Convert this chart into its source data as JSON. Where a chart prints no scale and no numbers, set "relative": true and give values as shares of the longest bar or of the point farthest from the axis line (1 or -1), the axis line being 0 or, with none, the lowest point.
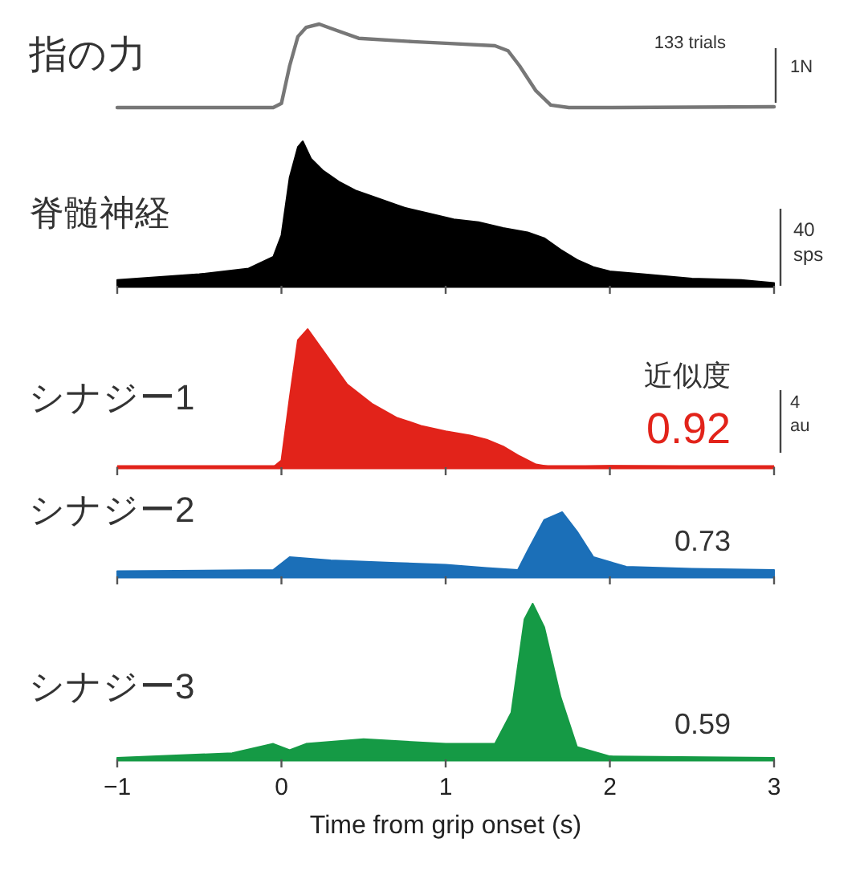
{
  "chart_data": [
    {
      "type": "line",
      "title": "指の力",
      "relative": true,
      "xlim": [
        -1,
        3
      ],
      "tick_labels": false,
      "x": [
        -1,
        -0.05,
        0,
        0.05,
        0.1,
        0.15,
        0.23,
        0.3,
        0.47,
        0.8,
        1.0,
        1.3,
        1.38,
        1.45,
        1.55,
        1.64,
        1.75,
        2.0,
        3
      ],
      "series": [
        {
          "color": "#777777",
          "values": [
            0,
            0,
            0.05,
            0.5,
            0.85,
            0.96,
            1.0,
            0.95,
            0.83,
            0.79,
            0.77,
            0.74,
            0.68,
            0.5,
            0.2,
            0.03,
            0,
            0,
            0.01
          ]
        }
      ],
      "annotations": [
        "133 trials",
        "1N"
      ]
    },
    {
      "type": "area",
      "title": "脊髄神経",
      "relative": true,
      "xlim": [
        -1,
        3
      ],
      "xticks": [
        -1,
        0,
        1,
        2,
        3
      ],
      "tick_labels": false,
      "x": [
        -1,
        -0.5,
        -0.2,
        -0.05,
        0,
        0.05,
        0.1,
        0.13,
        0.18,
        0.25,
        0.35,
        0.45,
        0.6,
        0.75,
        0.9,
        1.05,
        1.2,
        1.35,
        1.5,
        1.6,
        1.7,
        1.8,
        1.9,
        2.0,
        2.2,
        2.5,
        2.8,
        3
      ],
      "series": [
        {
          "color": "#000000",
          "values": [
            0.04,
            0.08,
            0.12,
            0.2,
            0.35,
            0.75,
            0.96,
            1.0,
            0.88,
            0.8,
            0.72,
            0.66,
            0.6,
            0.54,
            0.5,
            0.46,
            0.44,
            0.4,
            0.37,
            0.33,
            0.25,
            0.18,
            0.13,
            0.1,
            0.08,
            0.05,
            0.04,
            0.02
          ]
        }
      ],
      "annotations": [
        "40 sps"
      ]
    },
    {
      "type": "area",
      "title": "シナジー1",
      "relative": true,
      "xlim": [
        -1,
        3
      ],
      "xticks": [
        -1,
        0,
        1,
        2,
        3
      ],
      "tick_labels": false,
      "x": [
        -1,
        -0.05,
        0,
        0.05,
        0.1,
        0.16,
        0.25,
        0.4,
        0.55,
        0.7,
        0.85,
        1.0,
        1.15,
        1.25,
        1.35,
        1.45,
        1.55,
        1.65,
        2.0,
        3
      ],
      "series": [
        {
          "color": "#e2231a",
          "values": [
            0,
            0,
            0.05,
            0.5,
            0.92,
            1.0,
            0.85,
            0.6,
            0.46,
            0.36,
            0.3,
            0.26,
            0.23,
            0.2,
            0.15,
            0.08,
            0.02,
            0,
            0.01,
            0
          ]
        }
      ],
      "annotations": [
        "近似度",
        "0.92",
        "4 au"
      ]
    },
    {
      "type": "area",
      "title": "シナジー2",
      "relative": true,
      "xlim": [
        -1,
        3
      ],
      "xticks": [
        -1,
        0,
        1,
        2,
        3
      ],
      "tick_labels": false,
      "x": [
        -1,
        -0.05,
        0.05,
        0.3,
        0.7,
        1.0,
        1.25,
        1.44,
        1.5,
        1.6,
        1.71,
        1.8,
        1.9,
        2.1,
        2.5,
        3
      ],
      "series": [
        {
          "color": "#1b6fb8",
          "values": [
            0.08,
            0.1,
            0.3,
            0.25,
            0.21,
            0.18,
            0.13,
            0.1,
            0.4,
            0.88,
            1.0,
            0.7,
            0.3,
            0.15,
            0.12,
            0.1
          ]
        }
      ],
      "annotations": [
        "0.73"
      ]
    },
    {
      "type": "area",
      "title": "シナジー3",
      "xlabel": "Time from grip onset (s)",
      "relative": true,
      "xlim": [
        -1,
        3
      ],
      "xticks": [
        -1,
        0,
        1,
        2,
        3
      ],
      "tick_labels": "x",
      "x": [
        -1,
        -0.3,
        -0.05,
        0.05,
        0.15,
        0.5,
        1.0,
        1.3,
        1.4,
        1.48,
        1.53,
        1.6,
        1.7,
        1.8,
        2.0,
        3
      ],
      "series": [
        {
          "color": "#159a45",
          "values": [
            0.01,
            0.04,
            0.1,
            0.06,
            0.1,
            0.13,
            0.1,
            0.1,
            0.3,
            0.9,
            1.0,
            0.85,
            0.4,
            0.08,
            0.02,
            0.01
          ]
        }
      ],
      "annotations": [
        "0.59"
      ]
    }
  ]
}
